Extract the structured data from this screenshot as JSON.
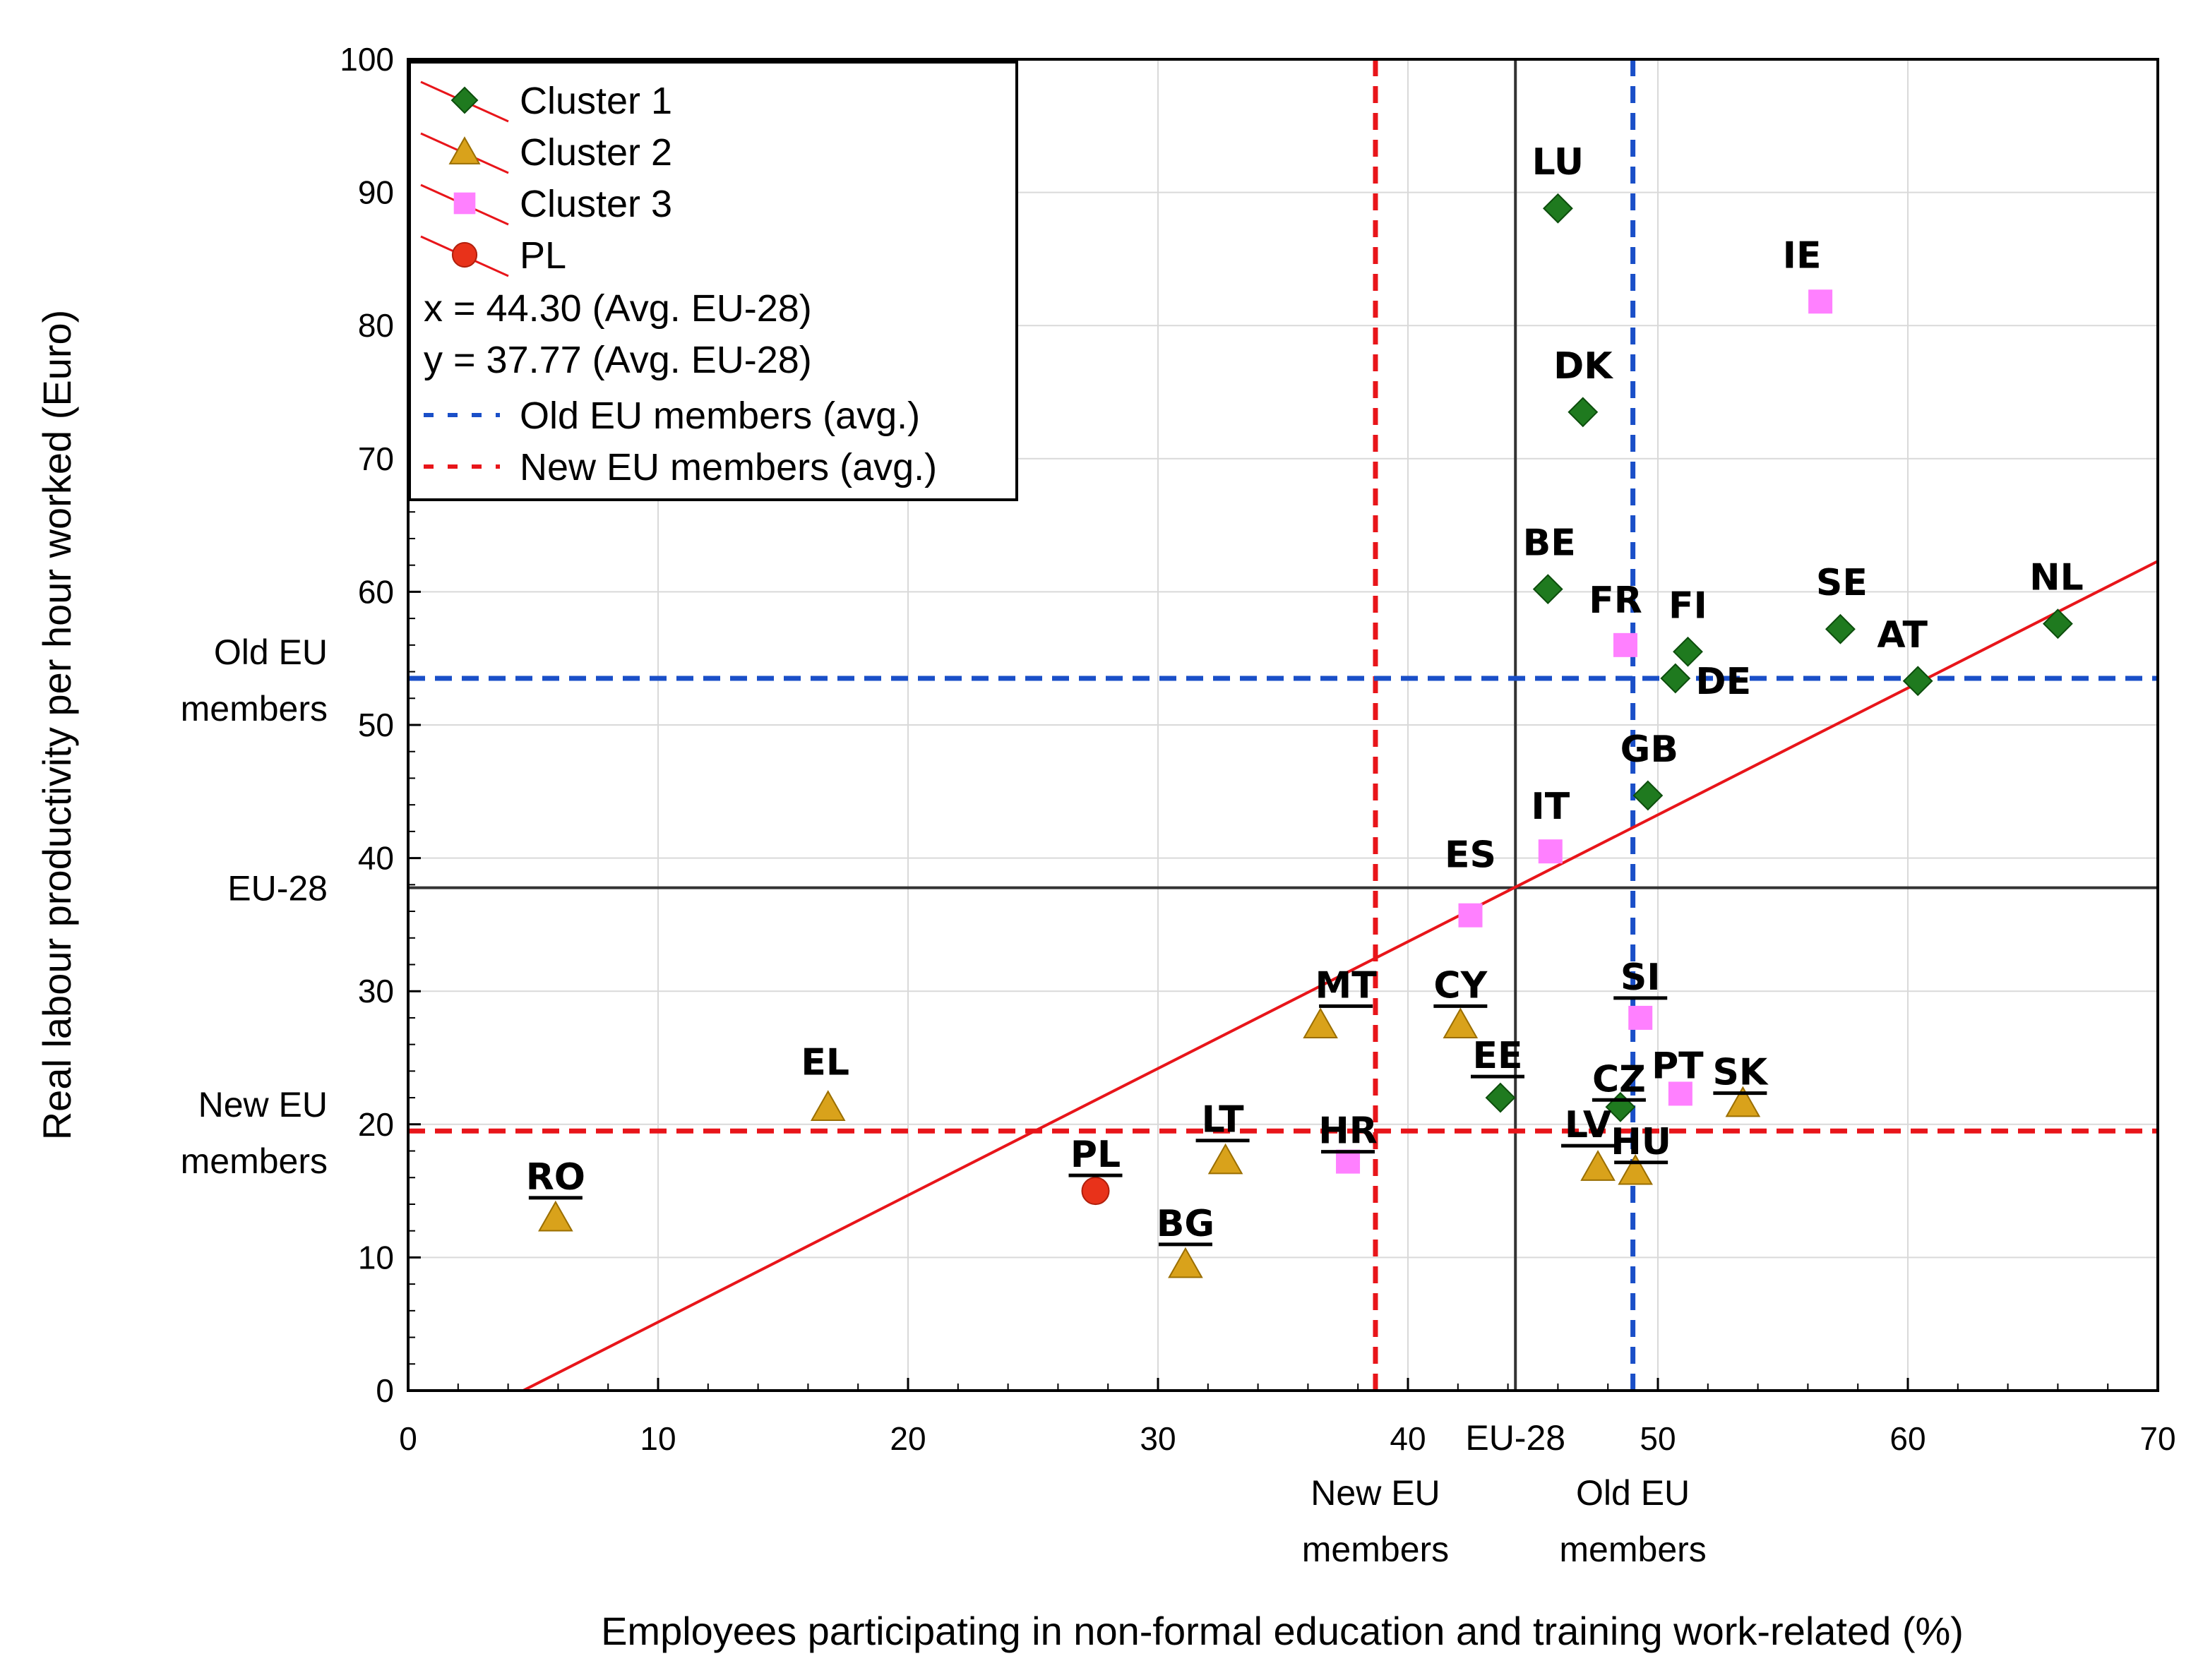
{
  "chart_data": {
    "type": "scatter",
    "xlabel": "Employees participating in non-formal education and training work-related (%)",
    "ylabel": "Real labour productivity per hour worked (Euro)",
    "xlim": [
      0,
      70
    ],
    "ylim": [
      0,
      100
    ],
    "x_ticks": [
      "0",
      "10",
      "20",
      "30",
      "40",
      "50",
      "60",
      "70"
    ],
    "y_ticks": [
      "0",
      "10",
      "20",
      "30",
      "40",
      "50",
      "60",
      "70",
      "80",
      "90",
      "100"
    ],
    "grid": true,
    "legend_position": "top-left",
    "colors": {
      "cluster1": "#1f7a1f",
      "cluster2": "#d9a21b",
      "cluster3": "#ff80ff",
      "pl": "#e8321a",
      "regression": "#e8151a",
      "old_eu": "#1a4fc8",
      "new_eu": "#e8151a",
      "eu28": "#333333"
    },
    "legend": {
      "cluster1": "Cluster 1",
      "cluster2": "Cluster 2",
      "cluster3": "Cluster 3",
      "pl": "PL",
      "x_avg": "x = 44.30 (Avg. EU-28)",
      "y_avg": "y = 37.77 (Avg. EU-28)",
      "old_eu": "Old EU members (avg.)",
      "new_eu": "New EU members (avg.)"
    },
    "reference_lines": {
      "eu28": {
        "x": 44.3,
        "y": 37.77,
        "x_label": "EU-28",
        "y_label": "EU-28"
      },
      "old_eu": {
        "x": 49.0,
        "y": 53.5,
        "x_label": [
          "Old EU",
          "members"
        ],
        "y_label": [
          "Old EU",
          "members"
        ]
      },
      "new_eu": {
        "x": 38.7,
        "y": 19.5,
        "x_label": [
          "New EU",
          "members"
        ],
        "y_label": [
          "New EU",
          "members"
        ]
      }
    },
    "regression": {
      "x": [
        4.6,
        70
      ],
      "y": [
        0,
        62.3
      ]
    },
    "series": [
      {
        "name": "Cluster 1",
        "marker": "diamond",
        "points": [
          {
            "label": "LU",
            "x": 46.0,
            "y": 88.8,
            "underline": false
          },
          {
            "label": "DK",
            "x": 47.0,
            "y": 73.5,
            "underline": false
          },
          {
            "label": "BE",
            "x": 45.6,
            "y": 60.2,
            "underline": false
          },
          {
            "label": "FI",
            "x": 51.2,
            "y": 55.5,
            "underline": false
          },
          {
            "label": "DE",
            "x": 50.7,
            "y": 53.5,
            "underline": false
          },
          {
            "label": "SE",
            "x": 57.3,
            "y": 57.2,
            "underline": false
          },
          {
            "label": "NL",
            "x": 66.0,
            "y": 57.6,
            "underline": false
          },
          {
            "label": "AT",
            "x": 60.4,
            "y": 53.3,
            "underline": false
          },
          {
            "label": "GB",
            "x": 49.6,
            "y": 44.7,
            "underline": false
          },
          {
            "label": "EE",
            "x": 43.7,
            "y": 22.0,
            "underline": true
          },
          {
            "label": "CZ",
            "x": 48.5,
            "y": 21.3,
            "underline": true
          }
        ]
      },
      {
        "name": "Cluster 2",
        "marker": "triangle",
        "points": [
          {
            "label": "RO",
            "x": 5.9,
            "y": 13.0,
            "underline": true
          },
          {
            "label": "EL",
            "x": 16.8,
            "y": 21.3,
            "underline": false
          },
          {
            "label": "BG",
            "x": 31.1,
            "y": 9.5,
            "underline": true
          },
          {
            "label": "LT",
            "x": 32.7,
            "y": 17.3,
            "underline": true
          },
          {
            "label": "MT",
            "x": 36.5,
            "y": 27.5,
            "underline": true
          },
          {
            "label": "CY",
            "x": 42.1,
            "y": 27.5,
            "underline": true
          },
          {
            "label": "LV",
            "x": 47.6,
            "y": 16.8,
            "underline": true
          },
          {
            "label": "HU",
            "x": 49.1,
            "y": 16.5,
            "underline": true
          },
          {
            "label": "SK",
            "x": 53.4,
            "y": 21.6,
            "underline": true
          }
        ]
      },
      {
        "name": "Cluster 3",
        "marker": "square",
        "points": [
          {
            "label": "IE",
            "x": 56.5,
            "y": 81.8,
            "underline": false
          },
          {
            "label": "FR",
            "x": 48.7,
            "y": 56.0,
            "underline": false
          },
          {
            "label": "IT",
            "x": 45.7,
            "y": 40.5,
            "underline": false
          },
          {
            "label": "ES",
            "x": 42.5,
            "y": 35.7,
            "underline": false
          },
          {
            "label": "SI",
            "x": 49.3,
            "y": 28.0,
            "underline": true
          },
          {
            "label": "PT",
            "x": 50.9,
            "y": 22.3,
            "underline": false
          },
          {
            "label": "HR",
            "x": 37.6,
            "y": 17.2,
            "underline": true
          }
        ]
      },
      {
        "name": "PL",
        "marker": "circle",
        "points": [
          {
            "label": "PL",
            "x": 27.5,
            "y": 15.0,
            "underline": true
          }
        ]
      }
    ]
  }
}
